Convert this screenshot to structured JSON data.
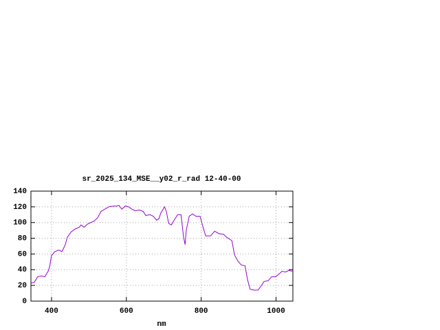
{
  "chart_data": {
    "type": "line",
    "title": "sr_2025_134_MSE__y02_r_rad 12-40-00",
    "x_label": "nm",
    "xlim": [
      345,
      1045
    ],
    "ylim": [
      0,
      140
    ],
    "xticks": [
      400,
      600,
      800,
      1000
    ],
    "yticks": [
      0,
      20,
      40,
      60,
      80,
      100,
      120,
      140
    ],
    "grid": true,
    "x": [
      345,
      354,
      363,
      373,
      382,
      391,
      395,
      400,
      409,
      419,
      428,
      437,
      442,
      452,
      464,
      474,
      479,
      487,
      496,
      505,
      514,
      523,
      532,
      542,
      553,
      566,
      575,
      580,
      588,
      597,
      606,
      615,
      624,
      635,
      645,
      652,
      663,
      672,
      681,
      687,
      692,
      702,
      707,
      713,
      720,
      729,
      737,
      746,
      753,
      757,
      760,
      768,
      777,
      786,
      797,
      805,
      812,
      825,
      836,
      847,
      860,
      869,
      882,
      889,
      898,
      907,
      917,
      924,
      931,
      942,
      952,
      961,
      968,
      979,
      988,
      998,
      1007,
      1016,
      1025,
      1034,
      1045
    ],
    "series": [
      {
        "color": "#9400d3",
        "values": [
          23,
          24,
          31,
          32,
          31,
          38,
          44,
          58,
          63,
          65,
          63,
          72,
          81,
          88,
          92,
          94,
          97,
          94,
          98,
          100,
          102,
          106,
          114,
          117,
          120,
          121,
          121,
          122,
          117,
          121,
          120,
          117,
          115,
          116,
          114,
          109,
          110,
          108,
          103,
          105,
          112,
          120,
          114,
          99,
          97,
          104,
          110,
          110,
          81,
          72,
          90,
          108,
          111,
          108,
          108,
          94,
          83,
          83,
          89,
          86,
          85,
          81,
          77,
          59,
          51,
          46,
          45,
          27,
          15,
          14,
          14,
          20,
          25,
          26,
          31,
          31,
          34,
          38,
          37,
          39,
          38
        ]
      }
    ]
  }
}
